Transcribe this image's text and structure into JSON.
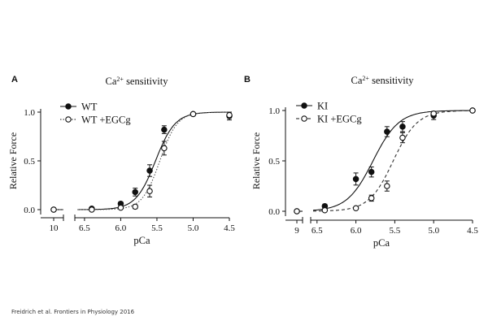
{
  "credit": "Freidrich et al. Frontiers in Physiology 2016",
  "chart_data": [
    {
      "type": "scatter",
      "panel_label": "A",
      "title": "Ca2+ sensitivity",
      "xlabel": "pCa",
      "ylabel": "Relative Force",
      "x_reversed": true,
      "axis_break": true,
      "baseline_x": 10,
      "xlim": [
        6.6,
        4.5
      ],
      "ylim": [
        -0.05,
        1.12
      ],
      "x_ticks": [
        "6.5",
        "6.0",
        "5.5",
        "5.0",
        "4.5"
      ],
      "y_ticks": [
        "0.0",
        "0.5",
        "1.0"
      ],
      "legend_position": "top-left",
      "series": [
        {
          "name": "WT",
          "marker": "filled-circle",
          "line": "solid",
          "color": "#111111",
          "x": [
            10,
            6.4,
            6.0,
            5.8,
            5.6,
            5.4,
            5.0,
            4.5
          ],
          "y": [
            0.0,
            0.01,
            0.06,
            0.18,
            0.4,
            0.82,
            0.98,
            0.96
          ],
          "err": [
            0.0,
            0.01,
            0.02,
            0.04,
            0.06,
            0.04,
            0.01,
            0.04
          ],
          "fit_pCa50": 5.52,
          "fit_hill": 3.2
        },
        {
          "name": "WT +EGCg",
          "marker": "open-circle",
          "line": "dotted",
          "color": "#555555",
          "x": [
            10,
            6.4,
            6.0,
            5.8,
            5.6,
            5.4,
            5.0,
            4.5
          ],
          "y": [
            0.0,
            0.0,
            0.02,
            0.03,
            0.19,
            0.63,
            0.98,
            0.97
          ],
          "err": [
            0.0,
            0.01,
            0.01,
            0.02,
            0.06,
            0.07,
            0.01,
            0.03
          ],
          "fit_pCa50": 5.46,
          "fit_hill": 3.6
        }
      ]
    },
    {
      "type": "scatter",
      "panel_label": "B",
      "title": "Ca2+ sensitivity",
      "xlabel": "pCa",
      "ylabel": "Relative Force",
      "x_reversed": true,
      "axis_break": true,
      "baseline_x": 9,
      "xlim": [
        6.55,
        4.5
      ],
      "ylim": [
        -0.05,
        1.12
      ],
      "x_ticks": [
        "6.5",
        "6.0",
        "5.5",
        "5.0",
        "4.5"
      ],
      "y_ticks": [
        "0.0",
        "0.5",
        "1.0"
      ],
      "legend_position": "top-left",
      "series": [
        {
          "name": "KI",
          "marker": "filled-circle",
          "line": "solid",
          "color": "#111111",
          "x": [
            9,
            6.4,
            6.0,
            5.8,
            5.6,
            5.4,
            5.0,
            4.5
          ],
          "y": [
            0.0,
            0.05,
            0.32,
            0.39,
            0.79,
            0.84,
            0.95,
            1.0
          ],
          "err": [
            0.0,
            0.02,
            0.06,
            0.05,
            0.05,
            0.05,
            0.04,
            0.0
          ],
          "fit_pCa50": 5.78,
          "fit_hill": 2.6
        },
        {
          "name": "KI +EGCg",
          "marker": "open-circle",
          "line": "dashed",
          "color": "#333333",
          "x": [
            9,
            6.4,
            6.0,
            5.8,
            5.6,
            5.4,
            5.0,
            4.5
          ],
          "y": [
            0.0,
            0.01,
            0.03,
            0.13,
            0.25,
            0.73,
            0.97,
            1.0
          ],
          "err": [
            0.0,
            0.01,
            0.01,
            0.03,
            0.05,
            0.05,
            0.02,
            0.0
          ],
          "fit_pCa50": 5.52,
          "fit_hill": 2.8
        }
      ]
    }
  ]
}
